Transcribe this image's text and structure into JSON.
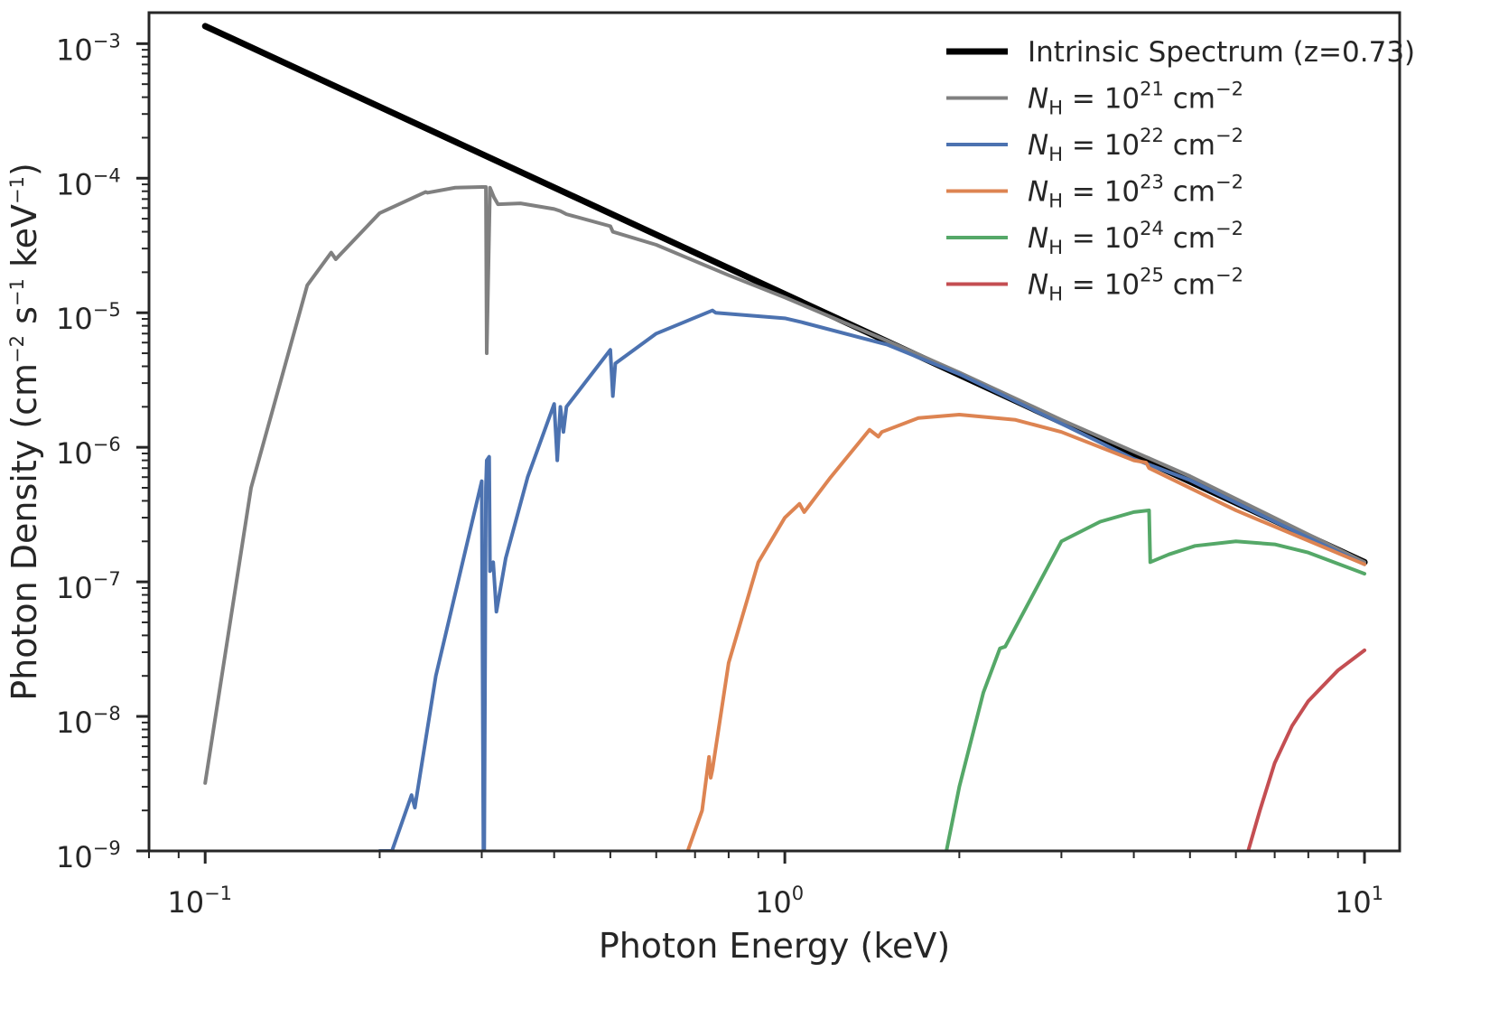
{
  "chart_data": {
    "type": "line",
    "title": "",
    "xlabel": "Photon Energy (keV)",
    "ylabel": "Photon Density (cm$^{-2}$ s$^{-1}$ keV$^{-1}$)",
    "ylabel_parts": {
      "base": "Photon Density (cm",
      "sup1": "−2",
      "mid1": " s",
      "sup2": "−1",
      "mid2": " keV",
      "sup3": "−1",
      "end": ")"
    },
    "xscale": "log",
    "yscale": "log",
    "xlim": [
      0.08,
      11.5
    ],
    "ylim": [
      1e-09,
      0.0017
    ],
    "grid": false,
    "legend_location": "top-right",
    "x_ticks": [
      {
        "value": 0.1,
        "base": "10",
        "exp": "−1"
      },
      {
        "value": 1,
        "base": "10",
        "exp": "0"
      },
      {
        "value": 10,
        "base": "10",
        "exp": "1"
      }
    ],
    "y_ticks": [
      {
        "value": 1e-09,
        "base": "10",
        "exp": "−9"
      },
      {
        "value": 1e-08,
        "base": "10",
        "exp": "−8"
      },
      {
        "value": 1e-07,
        "base": "10",
        "exp": "−7"
      },
      {
        "value": 1e-06,
        "base": "10",
        "exp": "−6"
      },
      {
        "value": 1e-05,
        "base": "10",
        "exp": "−5"
      },
      {
        "value": 0.0001,
        "base": "10",
        "exp": "−4"
      },
      {
        "value": 0.001,
        "base": "10",
        "exp": "−3"
      }
    ],
    "series": [
      {
        "name": "Intrinsic Spectrum (z=0.73)",
        "legend_base": "Intrinsic Spectrum (z=0.73)",
        "legend_exp": "",
        "color": "#000000",
        "x": [
          0.1,
          10
        ],
        "y": [
          0.00135,
          1.4e-07
        ]
      },
      {
        "name": "N_H = 10^21 cm^-2",
        "legend_base": "10",
        "legend_exp": "21",
        "color": "#808080",
        "x": [
          0.1,
          0.12,
          0.15,
          0.165,
          0.168,
          0.2,
          0.24,
          0.242,
          0.27,
          0.3,
          0.305,
          0.306,
          0.31,
          0.315,
          0.32,
          0.35,
          0.4,
          0.41,
          0.42,
          0.5,
          0.505,
          0.6,
          0.8,
          1.0,
          1.5,
          2.0,
          3.0,
          5.0,
          10
        ],
        "y": [
          3.2e-09,
          5e-07,
          1.6e-05,
          2.8e-05,
          2.5e-05,
          5.5e-05,
          7.9e-05,
          7.8e-05,
          8.5e-05,
          8.6e-05,
          8.6e-05,
          5e-06,
          8.5e-05,
          7.2e-05,
          6.4e-05,
          6.5e-05,
          5.9e-05,
          5.7e-05,
          5.4e-05,
          4.4e-05,
          4e-05,
          3.2e-05,
          1.9e-05,
          1.3e-05,
          6.2e-06,
          3.6e-06,
          1.6e-06,
          6.1e-07,
          1.4e-07
        ]
      },
      {
        "name": "N_H = 10^22 cm^-2",
        "legend_base": "10",
        "legend_exp": "22",
        "color": "#4c72b0",
        "x": [
          0.2,
          0.21,
          0.227,
          0.23,
          0.25,
          0.3,
          0.302,
          0.303,
          0.305,
          0.306,
          0.309,
          0.31,
          0.314,
          0.318,
          0.33,
          0.36,
          0.4,
          0.405,
          0.41,
          0.415,
          0.42,
          0.5,
          0.505,
          0.51,
          0.6,
          0.75,
          0.76,
          1.0,
          1.07,
          1.5,
          2.0,
          3.0,
          4.0,
          5.0,
          7.0,
          10
        ],
        "y": [
          1e-09,
          1e-09,
          2.6e-09,
          2.1e-09,
          2e-08,
          5.6e-07,
          1e-09,
          1e-09,
          5e-07,
          8e-07,
          8.5e-07,
          1.2e-07,
          1.4e-07,
          6e-08,
          1.5e-07,
          6e-07,
          2.1e-06,
          8e-07,
          2e-06,
          1.3e-06,
          2e-06,
          5.3e-06,
          2.4e-06,
          4.2e-06,
          7e-06,
          1.04e-05,
          1e-05,
          9.1e-06,
          8.5e-06,
          5.8e-06,
          3.5e-06,
          1.5e-06,
          8.2e-07,
          5.7e-07,
          2.8e-07,
          1.35e-07
        ]
      },
      {
        "name": "N_H = 10^23 cm^-2",
        "legend_base": "10",
        "legend_exp": "23",
        "color": "#dd8452",
        "x": [
          0.68,
          0.72,
          0.74,
          0.745,
          0.75,
          0.8,
          0.9,
          1.0,
          1.06,
          1.08,
          1.2,
          1.4,
          1.45,
          1.47,
          1.7,
          2.0,
          2.5,
          3.0,
          4.0,
          4.2,
          4.25,
          6.0,
          10
        ],
        "y": [
          1e-09,
          2e-09,
          5e-09,
          3.5e-09,
          4e-09,
          2.5e-08,
          1.4e-07,
          3e-07,
          3.8e-07,
          3.3e-07,
          6e-07,
          1.35e-06,
          1.2e-06,
          1.3e-06,
          1.65e-06,
          1.75e-06,
          1.6e-06,
          1.3e-06,
          8e-07,
          7.7e-07,
          7e-07,
          3.4e-07,
          1.35e-07
        ]
      },
      {
        "name": "N_H = 10^24 cm^-2",
        "legend_base": "10",
        "legend_exp": "24",
        "color": "#55a868",
        "x": [
          1.9,
          2.0,
          2.2,
          2.35,
          2.4,
          3.0,
          3.5,
          4.0,
          4.25,
          4.27,
          4.6,
          5.0,
          5.1,
          6.0,
          7.0,
          8.0,
          10
        ],
        "y": [
          1e-09,
          3e-09,
          1.5e-08,
          3.2e-08,
          3.3e-08,
          2e-07,
          2.8e-07,
          3.3e-07,
          3.4e-07,
          1.4e-07,
          1.6e-07,
          1.8e-07,
          1.85e-07,
          2e-07,
          1.9e-07,
          1.65e-07,
          1.15e-07
        ]
      },
      {
        "name": "N_H = 10^25 cm^-2",
        "legend_base": "10",
        "legend_exp": "25",
        "color": "#c44e52",
        "x": [
          6.3,
          6.6,
          7.0,
          7.5,
          8.0,
          9.0,
          10
        ],
        "y": [
          1e-09,
          2e-09,
          4.5e-09,
          8.5e-09,
          1.3e-08,
          2.2e-08,
          3.1e-08
        ]
      }
    ]
  }
}
